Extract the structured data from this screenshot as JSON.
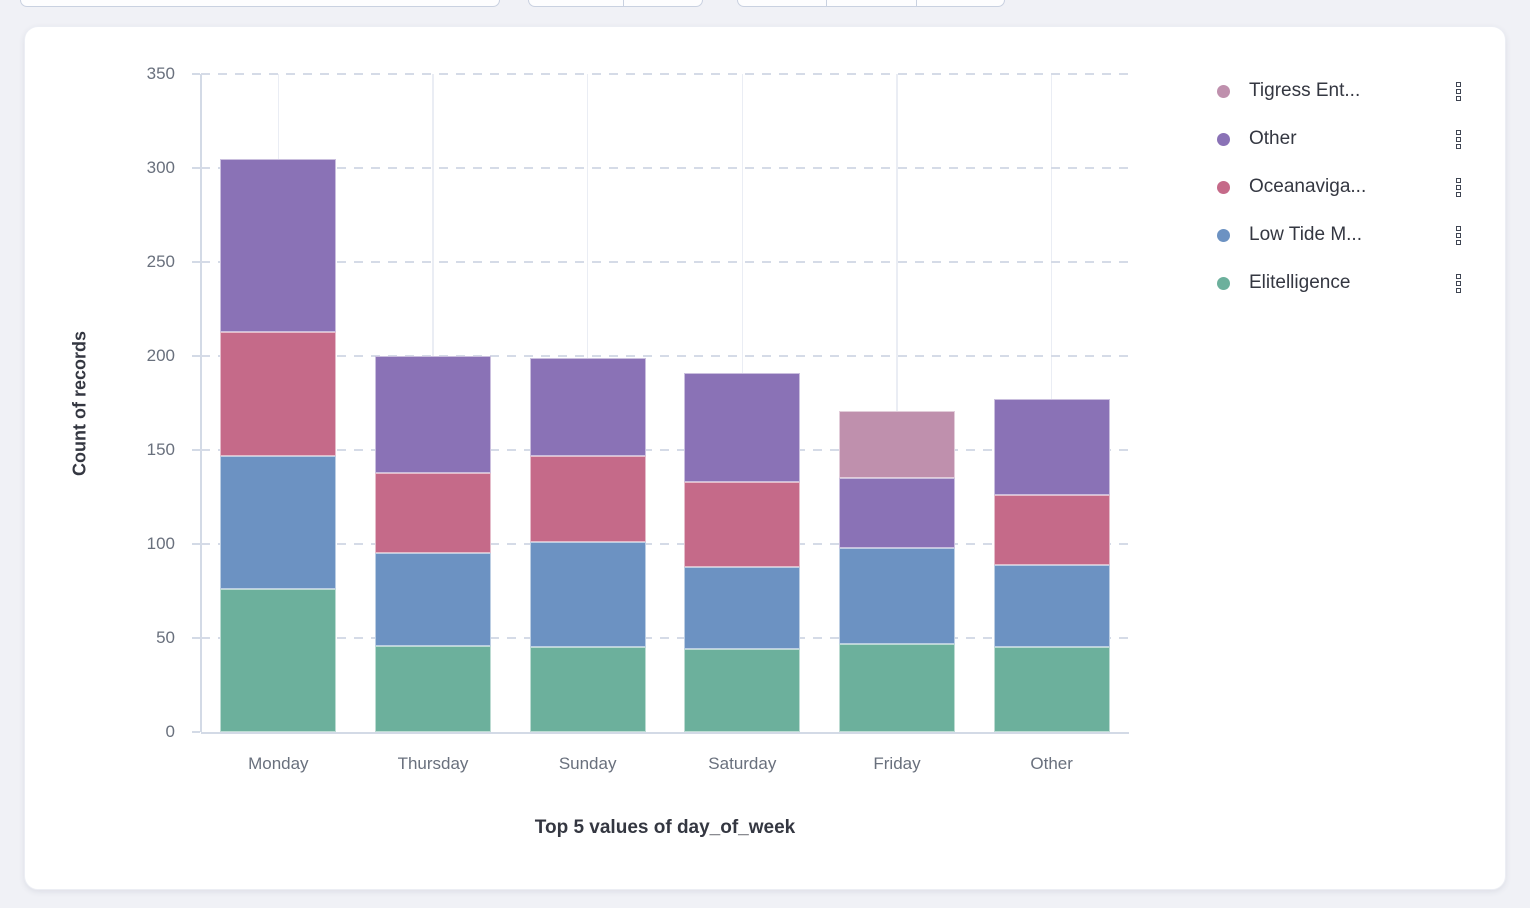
{
  "chart_data": {
    "type": "bar",
    "stacked": true,
    "title": "",
    "xlabel": "Top 5 values of day_of_week",
    "ylabel": "Count of records",
    "categories": [
      "Monday",
      "Thursday",
      "Sunday",
      "Saturday",
      "Friday",
      "Other"
    ],
    "ylim": [
      0,
      350
    ],
    "ytick_step": 50,
    "grid": true,
    "legend_position": "right",
    "series": [
      {
        "name": "Elitelligence",
        "color": "#6cb09c",
        "values": [
          76,
          46,
          45,
          44,
          47,
          45
        ]
      },
      {
        "name": "Low Tide M...",
        "color": "#6c92c2",
        "values": [
          71,
          49,
          56,
          44,
          51,
          44
        ]
      },
      {
        "name": "Oceanaviga...",
        "color": "#c56a89",
        "values": [
          66,
          43,
          46,
          45,
          0,
          37
        ]
      },
      {
        "name": "Other",
        "color": "#8a72b6",
        "values": [
          92,
          62,
          52,
          58,
          37,
          51
        ]
      },
      {
        "name": "Tigress Ent...",
        "color": "#bf90ad",
        "values": [
          0,
          0,
          0,
          0,
          36,
          0
        ]
      }
    ],
    "totals": [
      305,
      200,
      199,
      191,
      171,
      177
    ]
  },
  "legend": {
    "items": [
      {
        "label": "Tigress Ent...",
        "color": "#bf90ad"
      },
      {
        "label": "Other",
        "color": "#8a72b6"
      },
      {
        "label": "Oceanaviga...",
        "color": "#c56a89"
      },
      {
        "label": "Low Tide M...",
        "color": "#6c92c2"
      },
      {
        "label": "Elitelligence",
        "color": "#6cb09c"
      }
    ]
  }
}
